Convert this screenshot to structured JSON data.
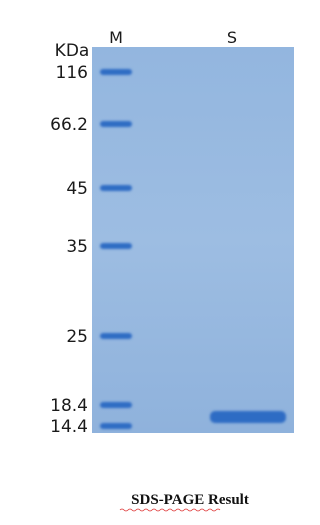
{
  "gel": {
    "unit": "KDa",
    "lanes": [
      "M",
      "S"
    ],
    "markers": [
      "116",
      "66.2",
      "45",
      "35",
      "25",
      "18.4",
      "14.4"
    ]
  },
  "caption": "SDS-PAGE Result"
}
